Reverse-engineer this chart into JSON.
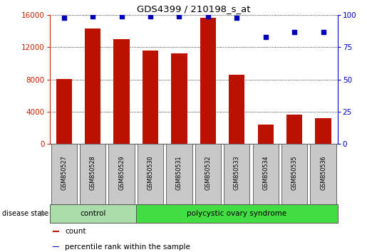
{
  "title": "GDS4399 / 210198_s_at",
  "samples": [
    "GSM850527",
    "GSM850528",
    "GSM850529",
    "GSM850530",
    "GSM850531",
    "GSM850532",
    "GSM850533",
    "GSM850534",
    "GSM850535",
    "GSM850536"
  ],
  "counts": [
    8050,
    14300,
    13000,
    11600,
    11200,
    15700,
    8600,
    2400,
    3600,
    3200
  ],
  "percentiles": [
    98,
    99,
    99,
    99,
    99,
    99,
    98,
    83,
    87,
    87
  ],
  "control_count": 3,
  "disease_groups": [
    {
      "label": "control",
      "start": 0,
      "end": 3,
      "color": "#aaddaa"
    },
    {
      "label": "polycystic ovary syndrome",
      "start": 3,
      "end": 10,
      "color": "#44dd44"
    }
  ],
  "ylim_left": [
    0,
    16000
  ],
  "ylim_right": [
    0,
    100
  ],
  "yticks_left": [
    0,
    4000,
    8000,
    12000,
    16000
  ],
  "yticks_right": [
    0,
    25,
    50,
    75,
    100
  ],
  "bar_color": "#BB1100",
  "dot_color": "#0000BB",
  "bar_width": 0.55,
  "legend_count_label": "count",
  "legend_pct_label": "percentile rank within the sample",
  "disease_state_label": "disease state",
  "background_color": "#ffffff",
  "tick_label_box_color": "#C8C8C8",
  "left_axis_color": "#CC2200",
  "right_axis_color": "#0000CC"
}
